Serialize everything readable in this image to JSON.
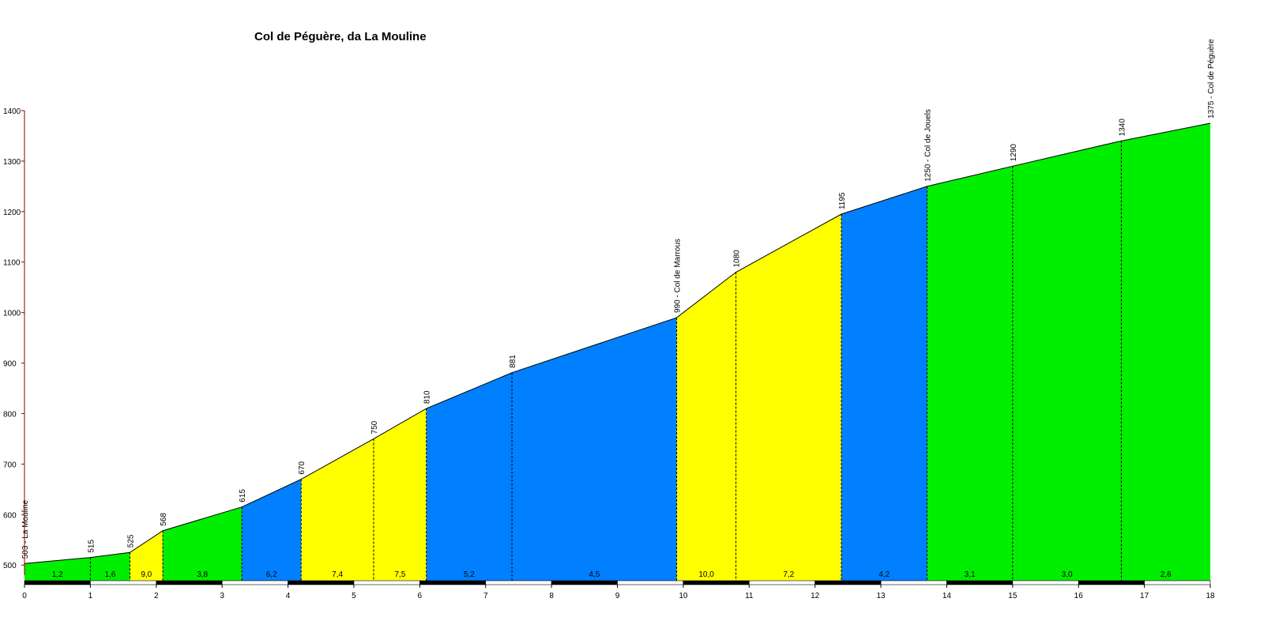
{
  "chart_data": {
    "type": "area",
    "title": "Col de Péguère, da La Mouline",
    "xlabel": "",
    "ylabel": "",
    "xlim": [
      0,
      18
    ],
    "ylim": [
      480,
      1400
    ],
    "x_ticks": [
      0,
      1,
      2,
      3,
      4,
      5,
      6,
      7,
      8,
      9,
      10,
      11,
      12,
      13,
      14,
      15,
      16,
      17,
      18
    ],
    "y_ticks": [
      500,
      600,
      700,
      800,
      900,
      1000,
      1100,
      1200,
      1300,
      1400
    ],
    "grid": false,
    "legend": "none",
    "profile_points": [
      {
        "x": 0.0,
        "y": 503,
        "label": "503 - La Mouline"
      },
      {
        "x": 1.0,
        "y": 515,
        "label": "515"
      },
      {
        "x": 1.6,
        "y": 525,
        "label": "525"
      },
      {
        "x": 2.1,
        "y": 568,
        "label": "568"
      },
      {
        "x": 3.3,
        "y": 615,
        "label": "615"
      },
      {
        "x": 4.2,
        "y": 670,
        "label": "670"
      },
      {
        "x": 5.3,
        "y": 750,
        "label": "750"
      },
      {
        "x": 6.1,
        "y": 810,
        "label": "810"
      },
      {
        "x": 7.4,
        "y": 881,
        "label": "881"
      },
      {
        "x": 9.9,
        "y": 990,
        "label": "990 - Col de Marrous"
      },
      {
        "x": 10.8,
        "y": 1080,
        "label": "1080"
      },
      {
        "x": 12.4,
        "y": 1195,
        "label": "1195"
      },
      {
        "x": 13.7,
        "y": 1250,
        "label": "1250 - Col de Jouels"
      },
      {
        "x": 15.0,
        "y": 1290,
        "label": "1290"
      },
      {
        "x": 16.65,
        "y": 1340,
        "label": "1340"
      },
      {
        "x": 18.0,
        "y": 1375,
        "label": "1375 - Col de Péguère"
      }
    ],
    "segments": [
      {
        "grade": "1,2",
        "color": "#00ee00"
      },
      {
        "grade": "1,6",
        "color": "#00ee00"
      },
      {
        "grade": "9,0",
        "color": "#ffff00"
      },
      {
        "grade": "3,8",
        "color": "#00ee00"
      },
      {
        "grade": "6,2",
        "color": "#0080ff"
      },
      {
        "grade": "7,4",
        "color": "#ffff00"
      },
      {
        "grade": "7,5",
        "color": "#ffff00"
      },
      {
        "grade": "5,2",
        "color": "#0080ff"
      },
      {
        "grade": "4,5",
        "color": "#0080ff"
      },
      {
        "grade": "10,0",
        "color": "#ffff00"
      },
      {
        "grade": "7,2",
        "color": "#ffff00"
      },
      {
        "grade": "4,2",
        "color": "#0080ff"
      },
      {
        "grade": "3,1",
        "color": "#00ee00"
      },
      {
        "grade": "3,0",
        "color": "#00ee00"
      },
      {
        "grade": "2,6",
        "color": "#00ee00"
      }
    ],
    "colors": {
      "green": "#00ee00",
      "yellow": "#ffff00",
      "blue": "#0080ff",
      "axis": "#8b0000"
    }
  }
}
